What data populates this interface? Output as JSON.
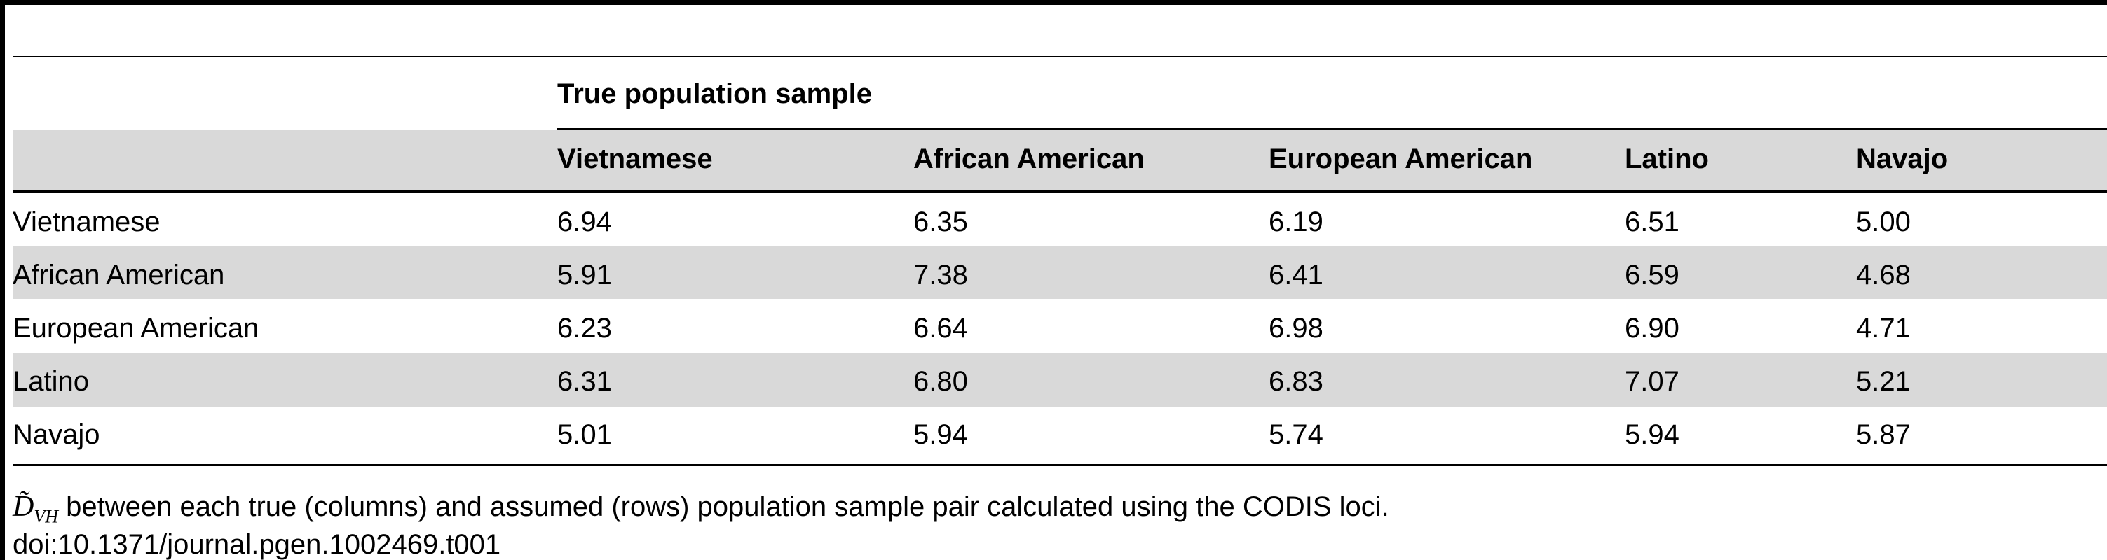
{
  "table": {
    "group_header": "True population sample",
    "columns": [
      "",
      "Vietnamese",
      "African American",
      "European American",
      "Latino",
      "Navajo"
    ],
    "rows": [
      {
        "label": "Vietnamese",
        "values": [
          "6.94",
          "6.35",
          "6.19",
          "6.51",
          "5.00"
        ]
      },
      {
        "label": "African American",
        "values": [
          "5.91",
          "7.38",
          "6.41",
          "6.59",
          "4.68"
        ]
      },
      {
        "label": "European American",
        "values": [
          "6.23",
          "6.64",
          "6.98",
          "6.90",
          "4.71"
        ]
      },
      {
        "label": "Latino",
        "values": [
          "6.31",
          "6.80",
          "6.83",
          "7.07",
          "5.21"
        ]
      },
      {
        "label": "Navajo",
        "values": [
          "5.01",
          "5.94",
          "5.74",
          "5.94",
          "5.87"
        ]
      }
    ]
  },
  "caption": {
    "symbol_base": "D̃",
    "symbol_sub": "VH",
    "text": " between each true (columns) and assumed (rows) population sample pair calculated using the CODIS loci.",
    "doi": "doi:10.1371/journal.pgen.1002469.t001"
  },
  "colors": {
    "rule": "#000000",
    "row_shade": "#d9d9d9"
  }
}
